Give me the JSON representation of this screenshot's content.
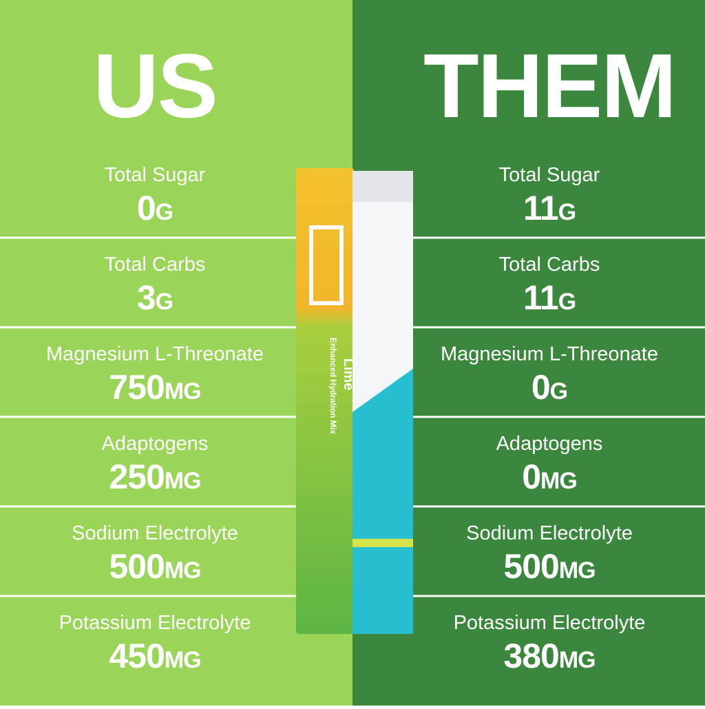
{
  "columns": [
    {
      "heading": "US",
      "rows": [
        {
          "label": "Total Sugar",
          "amount": "0",
          "unit": "G"
        },
        {
          "label": "Total Carbs",
          "amount": "3",
          "unit": "G"
        },
        {
          "label": "Magnesium L-Threonate",
          "amount": "750",
          "unit": "MG"
        },
        {
          "label": "Adaptogens",
          "amount": "250",
          "unit": "MG"
        },
        {
          "label": "Sodium Electrolyte",
          "amount": "500",
          "unit": "MG"
        },
        {
          "label": "Potassium Electrolyte",
          "amount": "450",
          "unit": "MG"
        }
      ]
    },
    {
      "heading": "THEM",
      "rows": [
        {
          "label": "Total Sugar",
          "amount": "11",
          "unit": "G"
        },
        {
          "label": "Total Carbs",
          "amount": "11",
          "unit": "G"
        },
        {
          "label": "Magnesium L-Threonate",
          "amount": "0",
          "unit": "G"
        },
        {
          "label": "Adaptogens",
          "amount": "0",
          "unit": "MG"
        },
        {
          "label": "Sodium Electrolyte",
          "amount": "500",
          "unit": "MG"
        },
        {
          "label": "Potassium Electrolyte",
          "amount": "380",
          "unit": "MG"
        }
      ]
    }
  ],
  "packet": {
    "flavor": "Lime",
    "tagline": "Enhanced Hydration Mix"
  }
}
